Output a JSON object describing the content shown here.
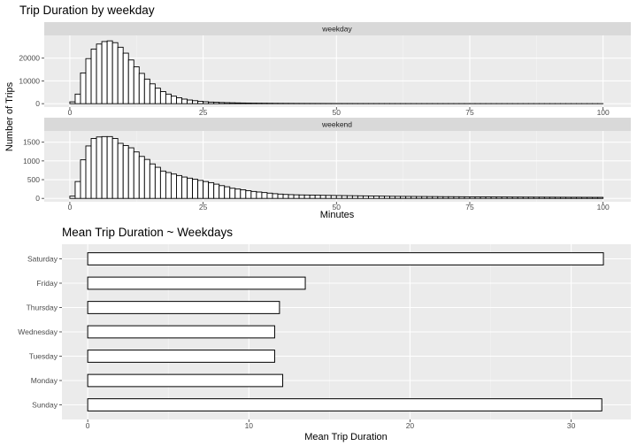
{
  "chart_data": [
    {
      "type": "bar",
      "title": "Trip Duration by weekday",
      "xlabel": "Minutes",
      "ylabel": "Number of Trips",
      "xlim": [
        0,
        100
      ],
      "x_ticks": [
        "0",
        "25",
        "50",
        "75",
        "100"
      ],
      "bin_width": 1,
      "bin_starts": [
        0,
        1,
        2,
        3,
        4,
        5,
        6,
        7,
        8,
        9,
        10,
        11,
        12,
        13,
        14,
        15,
        16,
        17,
        18,
        19,
        20,
        21,
        22,
        23,
        24,
        25,
        26,
        27,
        28,
        29,
        30,
        31,
        32,
        33,
        34,
        35,
        36,
        37,
        38,
        39,
        40,
        41,
        42,
        43,
        44,
        45,
        46,
        47,
        48,
        49,
        50,
        51,
        52,
        53,
        54,
        55,
        56,
        57,
        58,
        59,
        60,
        61,
        62,
        63,
        64,
        65,
        66,
        67,
        68,
        69,
        70,
        71,
        72,
        73,
        74,
        75,
        76,
        77,
        78,
        79,
        80,
        81,
        82,
        83,
        84,
        85,
        86,
        87,
        88,
        89,
        90,
        91,
        92,
        93,
        94,
        95,
        96,
        97,
        98,
        99
      ],
      "panels": [
        {
          "name": "weekday",
          "ylim": [
            0,
            30000
          ],
          "y_ticks": [
            "0",
            "10000",
            "20000"
          ],
          "y_tick_values": [
            0,
            10000,
            20000
          ],
          "values": [
            800,
            4200,
            13500,
            19800,
            24000,
            26200,
            27300,
            27600,
            26800,
            24800,
            22200,
            19200,
            16200,
            13300,
            10800,
            8700,
            6800,
            5300,
            4200,
            3300,
            2600,
            2000,
            1600,
            1300,
            1050,
            850,
            700,
            600,
            500,
            430,
            380,
            330,
            290,
            260,
            230,
            210,
            190,
            170,
            150,
            140,
            130,
            120,
            110,
            100,
            95,
            90,
            85,
            80,
            75,
            70,
            65,
            62,
            60,
            58,
            55,
            52,
            50,
            48,
            46,
            44,
            42,
            40,
            38,
            36,
            35,
            34,
            33,
            32,
            31,
            30,
            29,
            28,
            27,
            26,
            25,
            24,
            23,
            22,
            21,
            20,
            20,
            19,
            19,
            18,
            18,
            17,
            17,
            16,
            16,
            15,
            15,
            14,
            14,
            13,
            13,
            12,
            12,
            11,
            11,
            10
          ]
        },
        {
          "name": "weekend",
          "ylim": [
            0,
            1800
          ],
          "y_ticks": [
            "0",
            "500",
            "1000",
            "1500"
          ],
          "y_tick_values": [
            0,
            500,
            1000,
            1500
          ],
          "values": [
            60,
            450,
            1030,
            1400,
            1600,
            1640,
            1650,
            1650,
            1600,
            1470,
            1410,
            1350,
            1240,
            1120,
            1040,
            920,
            830,
            730,
            690,
            650,
            610,
            570,
            540,
            510,
            480,
            450,
            420,
            380,
            340,
            310,
            270,
            250,
            230,
            205,
            185,
            170,
            155,
            140,
            125,
            115,
            105,
            100,
            95,
            92,
            90,
            88,
            85,
            82,
            80,
            78,
            76,
            74,
            72,
            70,
            68,
            66,
            64,
            62,
            60,
            58,
            56,
            55,
            54,
            53,
            52,
            50,
            50,
            48,
            48,
            46,
            45,
            45,
            44,
            43,
            42,
            41,
            40,
            40,
            39,
            38,
            37,
            37,
            36,
            35,
            35,
            34,
            34,
            33,
            33,
            32,
            32,
            31,
            31,
            30,
            30,
            30,
            29,
            29,
            28,
            28
          ]
        }
      ]
    },
    {
      "type": "bar",
      "orientation": "horizontal",
      "title": "Mean Trip Duration ~ Weekdays",
      "xlabel": "Mean Trip Duration",
      "ylabel": "",
      "xlim": [
        0,
        32.5
      ],
      "x_ticks": [
        "0",
        "10",
        "20",
        "30"
      ],
      "x_tick_values": [
        0,
        10,
        20,
        30
      ],
      "categories": [
        "Sunday",
        "Monday",
        "Tuesday",
        "Wednesday",
        "Thursday",
        "Friday",
        "Saturday"
      ],
      "values": [
        31.9,
        12.1,
        11.6,
        11.6,
        11.9,
        13.5,
        32.0
      ]
    }
  ]
}
